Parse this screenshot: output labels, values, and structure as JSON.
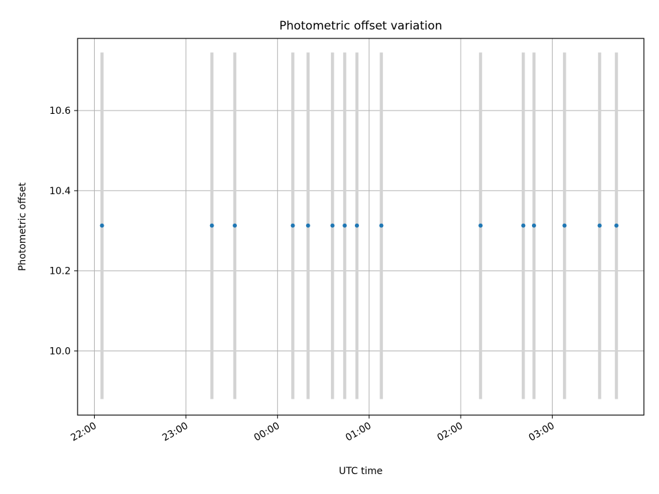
{
  "chart_data": {
    "type": "scatter",
    "title": "Photometric offset variation",
    "xlabel": "UTC time",
    "ylabel": "Photometric offset",
    "x_tick_labels": [
      "22:00",
      "23:00",
      "00:00",
      "01:00",
      "02:00",
      "03:00"
    ],
    "x_tick_minutes_from_2200": [
      0,
      60,
      120,
      180,
      240,
      300
    ],
    "y_ticks": [
      10.0,
      10.2,
      10.4,
      10.6
    ],
    "y_tick_labels": [
      "10.0",
      "10.2",
      "10.4",
      "10.6"
    ],
    "xlim_minutes_from_2200": [
      -11,
      360
    ],
    "ylim": [
      9.84,
      10.78
    ],
    "grid": true,
    "band_range": [
      9.88,
      10.745
    ],
    "x_times": [
      "22:05",
      "23:17",
      "23:32",
      "00:10",
      "00:20",
      "00:36",
      "00:44",
      "00:52",
      "01:08",
      "02:13",
      "02:41",
      "02:48",
      "03:08",
      "03:31",
      "03:42"
    ],
    "x_minutes_from_2200": [
      5,
      77,
      92,
      130,
      140,
      156,
      164,
      172,
      188,
      253,
      281,
      288,
      308,
      331,
      342
    ],
    "y": [
      10.313,
      10.313,
      10.313,
      10.313,
      10.313,
      10.313,
      10.313,
      10.313,
      10.313,
      10.313,
      10.313,
      10.313,
      10.313,
      10.313,
      10.313
    ],
    "colors": {
      "point": "#1f77b4",
      "band": "#d3d3d3",
      "grid": "#b0b0b0",
      "axes": "#000000"
    }
  }
}
